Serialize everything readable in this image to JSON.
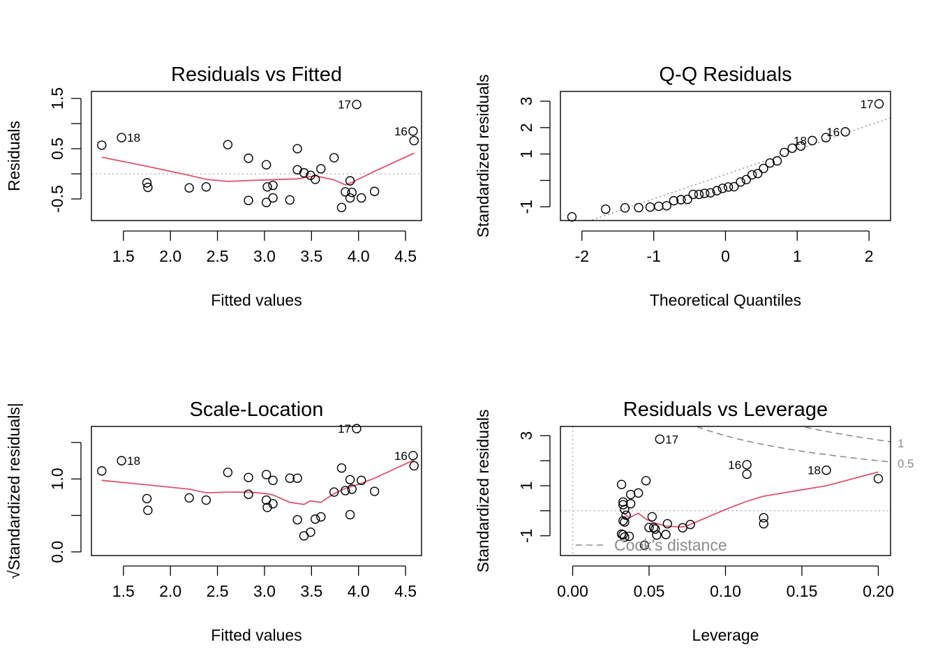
{
  "chart_data": [
    {
      "id": "rvf",
      "type": "scatter",
      "title": "Residuals vs Fitted",
      "xlabel": "Fitted values",
      "ylabel": "Residuals",
      "xlim": [
        1.16,
        4.67
      ],
      "ylim": [
        -0.93,
        1.64
      ],
      "xticks": [
        1.5,
        2.0,
        2.5,
        3.0,
        3.5,
        4.0,
        4.5
      ],
      "xtick_labels": [
        "1.5",
        "2.0",
        "2.5",
        "3.0",
        "3.5",
        "4.0",
        "4.5"
      ],
      "yticks": [
        -0.5,
        0.0,
        0.5,
        1.0,
        1.5
      ],
      "ytick_labels": [
        "-0.5",
        "",
        "0.5",
        "",
        "1.5"
      ],
      "ref_lines": [
        {
          "axis": "y",
          "value": 0,
          "color": "#b3b3b3",
          "dash": "dotted"
        }
      ],
      "points": [
        [
          1.27,
          0.57
        ],
        [
          1.48,
          0.72
        ],
        [
          1.75,
          -0.18
        ],
        [
          1.76,
          -0.27
        ],
        [
          2.2,
          -0.28
        ],
        [
          2.38,
          -0.26
        ],
        [
          2.61,
          0.58
        ],
        [
          2.83,
          0.31
        ],
        [
          2.83,
          -0.53
        ],
        [
          3.02,
          -0.57
        ],
        [
          3.02,
          0.18
        ],
        [
          3.03,
          -0.26
        ],
        [
          3.09,
          -0.48
        ],
        [
          3.09,
          -0.23
        ],
        [
          3.27,
          -0.52
        ],
        [
          3.35,
          0.5
        ],
        [
          3.35,
          0.08
        ],
        [
          3.42,
          0.02
        ],
        [
          3.49,
          -0.03
        ],
        [
          3.54,
          -0.11
        ],
        [
          3.6,
          0.1
        ],
        [
          3.74,
          0.32
        ],
        [
          3.82,
          -0.67
        ],
        [
          3.86,
          -0.36
        ],
        [
          3.91,
          -0.48
        ],
        [
          3.91,
          -0.14
        ],
        [
          3.93,
          -0.37
        ],
        [
          3.98,
          1.38
        ],
        [
          4.03,
          -0.48
        ],
        [
          4.17,
          -0.35
        ],
        [
          4.58,
          0.85
        ],
        [
          4.59,
          0.66
        ]
      ],
      "smooth": [
        [
          1.27,
          0.33
        ],
        [
          1.75,
          0.15
        ],
        [
          2.2,
          -0.03
        ],
        [
          2.38,
          -0.11
        ],
        [
          2.61,
          -0.15
        ],
        [
          3.02,
          -0.12
        ],
        [
          3.35,
          -0.1
        ],
        [
          3.54,
          -0.04
        ],
        [
          3.74,
          -0.12
        ],
        [
          3.86,
          -0.22
        ],
        [
          3.93,
          -0.17
        ],
        [
          4.17,
          0.05
        ],
        [
          4.59,
          0.41
        ]
      ],
      "labels": [
        {
          "text": "18",
          "x": 1.48,
          "y": 0.72,
          "side": "right"
        },
        {
          "text": "17",
          "x": 3.98,
          "y": 1.38,
          "side": "left"
        },
        {
          "text": "16",
          "x": 4.58,
          "y": 0.85,
          "side": "left"
        }
      ]
    },
    {
      "id": "qq",
      "type": "scatter",
      "title": "Q-Q Residuals",
      "xlabel": "Theoretical Quantiles",
      "ylabel": "Standardized residuals",
      "xlim": [
        -2.3,
        2.3
      ],
      "ylim": [
        -1.52,
        3.37
      ],
      "xticks": [
        -2,
        -1,
        0,
        1,
        2
      ],
      "xtick_labels": [
        "-2",
        "-1",
        "0",
        "1",
        "2"
      ],
      "yticks": [
        -1,
        0,
        1,
        2,
        3
      ],
      "ytick_labels": [
        "-1",
        "",
        "1",
        "2",
        "3"
      ],
      "ref_lines": [
        {
          "axis": "qq",
          "slope": 0.93,
          "intercept": 0.23,
          "color": "#8c8c8c",
          "dash": "dotted"
        }
      ],
      "points": [
        [
          -2.14,
          -1.38
        ],
        [
          -1.67,
          -1.09
        ],
        [
          -1.4,
          -1.04
        ],
        [
          -1.21,
          -1.03
        ],
        [
          -1.05,
          -1.01
        ],
        [
          -0.93,
          -0.98
        ],
        [
          -0.82,
          -0.96
        ],
        [
          -0.72,
          -0.77
        ],
        [
          -0.62,
          -0.73
        ],
        [
          -0.53,
          -0.72
        ],
        [
          -0.45,
          -0.53
        ],
        [
          -0.37,
          -0.53
        ],
        [
          -0.29,
          -0.49
        ],
        [
          -0.21,
          -0.47
        ],
        [
          -0.12,
          -0.39
        ],
        [
          -0.04,
          -0.3
        ],
        [
          0.04,
          -0.25
        ],
        [
          0.12,
          -0.24
        ],
        [
          0.21,
          -0.06
        ],
        [
          0.29,
          0.03
        ],
        [
          0.37,
          0.21
        ],
        [
          0.45,
          0.26
        ],
        [
          0.53,
          0.45
        ],
        [
          0.62,
          0.66
        ],
        [
          0.72,
          0.74
        ],
        [
          0.82,
          1.06
        ],
        [
          0.93,
          1.22
        ],
        [
          1.05,
          1.3
        ],
        [
          1.21,
          1.51
        ],
        [
          1.4,
          1.62
        ],
        [
          1.67,
          1.84
        ],
        [
          2.14,
          2.9
        ]
      ],
      "labels": [
        {
          "text": "17",
          "x": 2.14,
          "y": 2.9,
          "side": "left"
        },
        {
          "text": "16",
          "x": 1.67,
          "y": 1.84,
          "side": "left"
        },
        {
          "text": "18",
          "x": 1.21,
          "y": 1.51,
          "side": "left"
        }
      ]
    },
    {
      "id": "sl",
      "type": "scatter",
      "title": "Scale-Location",
      "xlabel": "Fitted values",
      "ylabel": "√Standardized residuals|",
      "xlim": [
        1.16,
        4.67
      ],
      "ylim": [
        -0.05,
        1.72
      ],
      "xticks": [
        1.5,
        2.0,
        2.5,
        3.0,
        3.5,
        4.0,
        4.5
      ],
      "xtick_labels": [
        "1.5",
        "2.0",
        "2.5",
        "3.0",
        "3.5",
        "4.0",
        "4.5"
      ],
      "yticks": [
        0.0,
        0.5,
        1.0,
        1.5
      ],
      "ytick_labels": [
        "0.0",
        "",
        "1.0",
        ""
      ],
      "ref_lines": [],
      "points": [
        [
          1.27,
          1.11
        ],
        [
          1.48,
          1.25
        ],
        [
          1.75,
          0.73
        ],
        [
          1.76,
          0.57
        ],
        [
          2.2,
          0.74
        ],
        [
          2.38,
          0.71
        ],
        [
          2.61,
          1.09
        ],
        [
          2.83,
          1.02
        ],
        [
          2.83,
          0.79
        ],
        [
          3.02,
          1.06
        ],
        [
          3.02,
          0.71
        ],
        [
          3.03,
          0.61
        ],
        [
          3.09,
          0.98
        ],
        [
          3.09,
          0.66
        ],
        [
          3.27,
          1.01
        ],
        [
          3.35,
          1.01
        ],
        [
          3.35,
          0.44
        ],
        [
          3.42,
          0.22
        ],
        [
          3.49,
          0.27
        ],
        [
          3.54,
          0.45
        ],
        [
          3.6,
          0.48
        ],
        [
          3.74,
          0.82
        ],
        [
          3.82,
          1.15
        ],
        [
          3.86,
          0.84
        ],
        [
          3.91,
          0.51
        ],
        [
          3.91,
          0.99
        ],
        [
          3.93,
          0.86
        ],
        [
          3.98,
          1.69
        ],
        [
          4.03,
          0.98
        ],
        [
          4.17,
          0.83
        ],
        [
          4.58,
          1.32
        ],
        [
          4.59,
          1.18
        ]
      ],
      "smooth": [
        [
          1.27,
          0.98
        ],
        [
          1.75,
          0.92
        ],
        [
          2.2,
          0.86
        ],
        [
          2.38,
          0.81
        ],
        [
          2.61,
          0.82
        ],
        [
          2.83,
          0.82
        ],
        [
          3.02,
          0.8
        ],
        [
          3.09,
          0.78
        ],
        [
          3.27,
          0.68
        ],
        [
          3.42,
          0.65
        ],
        [
          3.49,
          0.7
        ],
        [
          3.54,
          0.69
        ],
        [
          3.6,
          0.68
        ],
        [
          3.74,
          0.8
        ],
        [
          3.86,
          0.87
        ],
        [
          4.03,
          0.94
        ],
        [
          4.17,
          1.01
        ],
        [
          4.59,
          1.26
        ]
      ],
      "labels": [
        {
          "text": "18",
          "x": 1.48,
          "y": 1.25,
          "side": "right"
        },
        {
          "text": "17",
          "x": 3.98,
          "y": 1.69,
          "side": "left"
        },
        {
          "text": "16",
          "x": 4.58,
          "y": 1.32,
          "side": "left"
        }
      ]
    },
    {
      "id": "rvl",
      "type": "scatter",
      "title": "Residuals vs Leverage",
      "xlabel": "Leverage",
      "ylabel": "Standardized residuals",
      "xlim": [
        -0.008,
        0.208
      ],
      "ylim": [
        -1.79,
        3.37
      ],
      "xticks": [
        0.0,
        0.05,
        0.1,
        0.15,
        0.2
      ],
      "xtick_labels": [
        "0.00",
        "0.05",
        "0.10",
        "0.15",
        "0.20"
      ],
      "yticks": [
        -1,
        0,
        1,
        2,
        3
      ],
      "ytick_labels": [
        "-1",
        "",
        "1",
        "",
        "3"
      ],
      "ref_lines": [
        {
          "axis": "y",
          "value": 0,
          "color": "#b3b3b3",
          "dash": "dotted"
        },
        {
          "axis": "x",
          "value": 0,
          "color": "#b3b3b3",
          "dash": "dotted"
        }
      ],
      "points": [
        [
          0.032,
          1.05
        ],
        [
          0.033,
          0.35
        ],
        [
          0.033,
          0.24
        ],
        [
          0.034,
          0.05
        ],
        [
          0.033,
          -0.4
        ],
        [
          0.034,
          -0.45
        ],
        [
          0.032,
          -0.93
        ],
        [
          0.033,
          -0.96
        ],
        [
          0.034,
          -1.05
        ],
        [
          0.035,
          -0.18
        ],
        [
          0.037,
          -1.02
        ],
        [
          0.038,
          0.65
        ],
        [
          0.038,
          0.28
        ],
        [
          0.043,
          0.71
        ],
        [
          0.048,
          1.2
        ],
        [
          0.05,
          -0.67
        ],
        [
          0.052,
          -0.24
        ],
        [
          0.054,
          -0.73
        ],
        [
          0.055,
          -0.97
        ],
        [
          0.057,
          2.86
        ],
        [
          0.053,
          -0.67
        ],
        [
          0.062,
          -0.52
        ],
        [
          0.061,
          -0.95
        ],
        [
          0.072,
          -0.68
        ],
        [
          0.077,
          -0.55
        ],
        [
          0.114,
          1.84
        ],
        [
          0.114,
          1.46
        ],
        [
          0.125,
          -0.28
        ],
        [
          0.125,
          -0.52
        ],
        [
          0.166,
          1.62
        ],
        [
          0.2,
          1.28
        ],
        [
          0.047,
          -1.38
        ]
      ],
      "smooth": [
        [
          0.033,
          -0.07
        ],
        [
          0.037,
          -0.28
        ],
        [
          0.043,
          -0.1
        ],
        [
          0.048,
          -0.33
        ],
        [
          0.053,
          -0.48
        ],
        [
          0.062,
          -0.62
        ],
        [
          0.072,
          -0.65
        ],
        [
          0.077,
          -0.55
        ],
        [
          0.1,
          0.05
        ],
        [
          0.114,
          0.38
        ],
        [
          0.125,
          0.58
        ],
        [
          0.166,
          1.0
        ],
        [
          0.2,
          1.55
        ]
      ],
      "labels": [
        {
          "text": "17",
          "x": 0.057,
          "y": 2.86,
          "side": "right"
        },
        {
          "text": "16",
          "x": 0.114,
          "y": 1.84,
          "side": "left"
        },
        {
          "text": "18",
          "x": 0.166,
          "y": 1.62,
          "side": "left"
        }
      ],
      "cooks": {
        "p": 2,
        "levels": [
          0.5,
          1
        ],
        "labels": [
          "0.5",
          "1"
        ],
        "legend": "Cook's distance",
        "color": "#8c8c8c"
      }
    }
  ]
}
